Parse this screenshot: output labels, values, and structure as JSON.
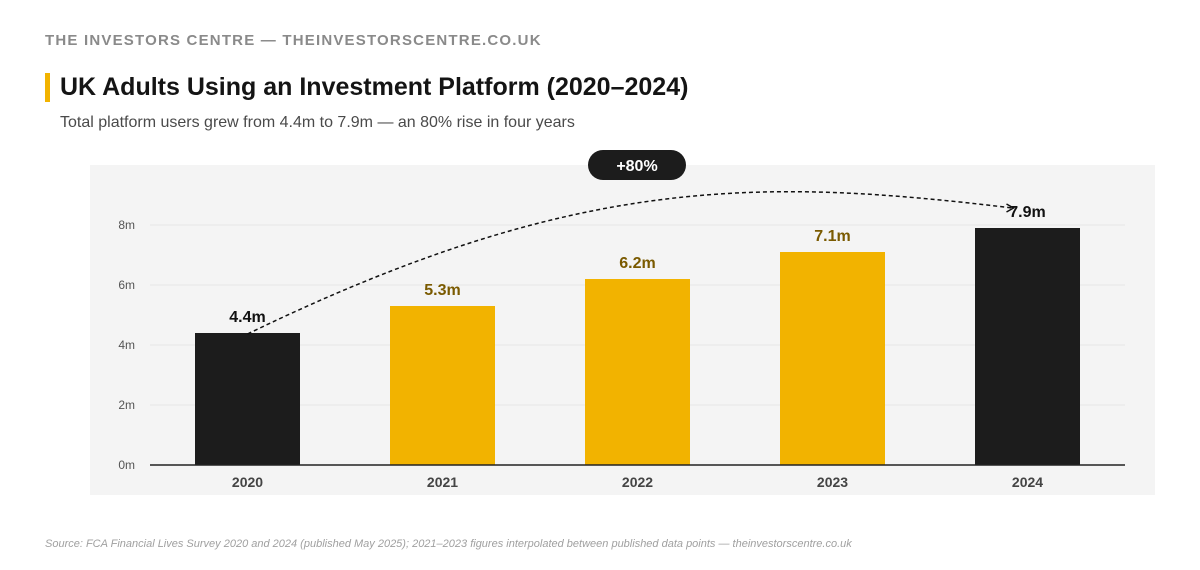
{
  "header": {
    "brand": "THE INVESTORS CENTRE — THEINVESTORSCENTRE.CO.UK",
    "title": "UK Adults Using an Investment Platform (2020–2024)",
    "subtitle": "Total platform users grew from 4.4m to 7.9m — an 80% rise in four years"
  },
  "footer": {
    "source": "Source: FCA Financial Lives Survey 2020 and 2024 (published May 2025); 2021–2023 figures interpolated between published data points — theinvestorscentre.co.uk"
  },
  "colors": {
    "accent": "#f2b300",
    "dark": "#1c1c1c",
    "label_gold": "#7a5a00",
    "panel": "#f4f4f4"
  },
  "chart_data": {
    "type": "bar",
    "categories": [
      "2020",
      "2021",
      "2022",
      "2023",
      "2024"
    ],
    "values": [
      4.4,
      5.3,
      6.2,
      7.1,
      7.9
    ],
    "data_labels": [
      "4.4m",
      "5.3m",
      "6.2m",
      "7.1m",
      "7.9m"
    ],
    "bar_colors": [
      "dark",
      "accent",
      "accent",
      "accent",
      "dark"
    ],
    "ylim": [
      0,
      8
    ],
    "yticks": [
      0,
      2,
      4,
      6,
      8
    ],
    "ytick_labels": [
      "0m",
      "2m",
      "4m",
      "6m",
      "8m"
    ],
    "grid": true,
    "annotation": {
      "text": "+80%",
      "from": "2020",
      "to": "2024",
      "style": "dashed-arc"
    }
  }
}
